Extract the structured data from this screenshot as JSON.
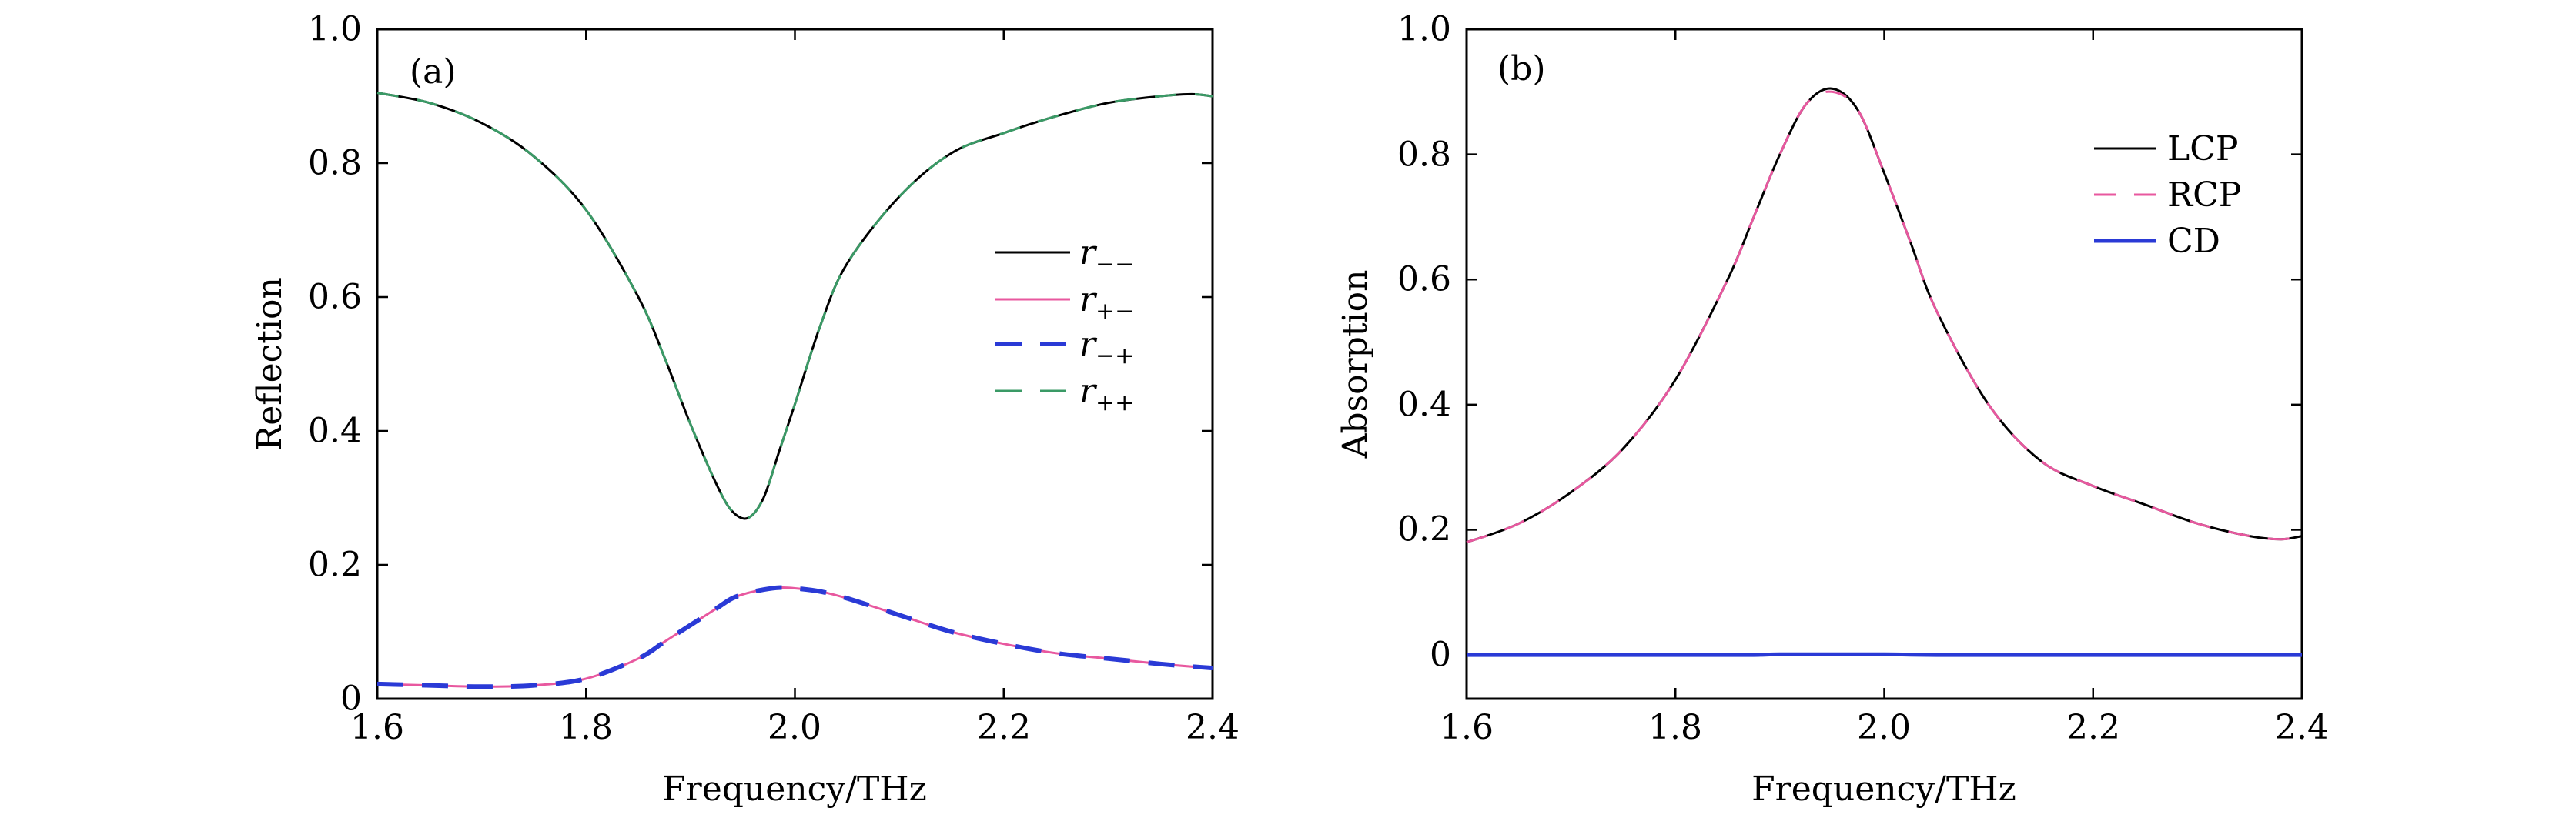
{
  "chart_data": [
    {
      "panel": "(a)",
      "type": "line",
      "xlabel": "Frequency/THz",
      "ylabel": "Reflection",
      "xlim": [
        1.6,
        2.4
      ],
      "ylim": [
        0,
        1.0
      ],
      "xticks": [
        1.6,
        1.8,
        2.0,
        2.2,
        2.4
      ],
      "xtick_labels": [
        "1.6",
        "1.8",
        "2.0",
        "2.2",
        "2.4"
      ],
      "yticks": [
        0,
        0.2,
        0.4,
        0.6,
        0.8,
        1.0
      ],
      "ytick_labels": [
        "0",
        "0.2",
        "0.4",
        "0.6",
        "0.8",
        "1.0"
      ],
      "legend_position": "center-right",
      "x": [
        1.6,
        1.65,
        1.7,
        1.75,
        1.8,
        1.85,
        1.875,
        1.9,
        1.925,
        1.94,
        1.955,
        1.97,
        1.985,
        2.0,
        2.025,
        2.05,
        2.1,
        2.15,
        2.2,
        2.25,
        2.3,
        2.35,
        2.38,
        2.4
      ],
      "series": [
        {
          "name": "r",
          "sub": "−−",
          "color": "#000000",
          "style": "solid",
          "values": [
            0.905,
            0.89,
            0.86,
            0.81,
            0.73,
            0.6,
            0.51,
            0.41,
            0.32,
            0.28,
            0.27,
            0.3,
            0.37,
            0.44,
            0.56,
            0.65,
            0.75,
            0.815,
            0.845,
            0.87,
            0.89,
            0.9,
            0.903,
            0.9
          ]
        },
        {
          "name": "r",
          "sub": "+−",
          "color": "#e8589f",
          "style": "solid",
          "values": [
            0.022,
            0.02,
            0.018,
            0.02,
            0.03,
            0.06,
            0.085,
            0.11,
            0.135,
            0.15,
            0.158,
            0.163,
            0.166,
            0.165,
            0.16,
            0.15,
            0.125,
            0.1,
            0.082,
            0.068,
            0.06,
            0.052,
            0.048,
            0.046
          ]
        },
        {
          "name": "r",
          "sub": "−+",
          "color": "#2a3ad6",
          "style": "dashed-thick",
          "values": [
            0.022,
            0.02,
            0.018,
            0.02,
            0.03,
            0.06,
            0.085,
            0.11,
            0.135,
            0.15,
            0.158,
            0.163,
            0.166,
            0.165,
            0.16,
            0.15,
            0.125,
            0.1,
            0.082,
            0.068,
            0.06,
            0.052,
            0.048,
            0.046
          ]
        },
        {
          "name": "r",
          "sub": "++",
          "color": "#3a9a66",
          "style": "dashed",
          "values": [
            0.905,
            0.89,
            0.86,
            0.81,
            0.73,
            0.6,
            0.51,
            0.41,
            0.32,
            0.28,
            0.27,
            0.3,
            0.37,
            0.44,
            0.56,
            0.65,
            0.75,
            0.815,
            0.845,
            0.87,
            0.89,
            0.9,
            0.903,
            0.9
          ]
        }
      ]
    },
    {
      "panel": "(b)",
      "type": "line",
      "xlabel": "Frequency/THz",
      "ylabel": "Absorption",
      "xlim": [
        1.6,
        2.4
      ],
      "ylim": [
        -0.07,
        1.0
      ],
      "xticks": [
        1.6,
        1.8,
        2.0,
        2.2,
        2.4
      ],
      "xtick_labels": [
        "1.6",
        "1.8",
        "2.0",
        "2.2",
        "2.4"
      ],
      "yticks": [
        0,
        0.2,
        0.4,
        0.6,
        0.8,
        1.0
      ],
      "ytick_labels": [
        "0",
        "0.2",
        "0.4",
        "0.6",
        "0.8",
        "1.0"
      ],
      "legend_position": "top-right",
      "x": [
        1.6,
        1.65,
        1.7,
        1.75,
        1.8,
        1.85,
        1.875,
        1.9,
        1.925,
        1.95,
        1.975,
        2.0,
        2.025,
        2.05,
        2.1,
        2.15,
        2.2,
        2.25,
        2.3,
        2.35,
        2.38,
        2.4
      ],
      "series": [
        {
          "name": "LCP",
          "color": "#000000",
          "style": "solid",
          "values": [
            0.18,
            0.21,
            0.26,
            0.33,
            0.44,
            0.6,
            0.7,
            0.8,
            0.88,
            0.905,
            0.87,
            0.77,
            0.66,
            0.55,
            0.4,
            0.31,
            0.27,
            0.24,
            0.21,
            0.19,
            0.185,
            0.19
          ]
        },
        {
          "name": "RCP",
          "color": "#e8589f",
          "style": "dashed",
          "values": [
            0.18,
            0.21,
            0.26,
            0.33,
            0.44,
            0.6,
            0.7,
            0.8,
            0.88,
            0.9,
            0.87,
            0.77,
            0.66,
            0.55,
            0.4,
            0.31,
            0.27,
            0.24,
            0.21,
            0.19,
            0.185,
            0.19
          ]
        },
        {
          "name": "CD",
          "color": "#2a3ad6",
          "style": "solid-thick",
          "values": [
            0,
            0,
            0,
            0,
            0,
            0,
            0,
            0.001,
            0.001,
            0.001,
            0.001,
            0.001,
            0.0005,
            0,
            0,
            0,
            0,
            0,
            0,
            0,
            0,
            0
          ]
        }
      ]
    }
  ]
}
